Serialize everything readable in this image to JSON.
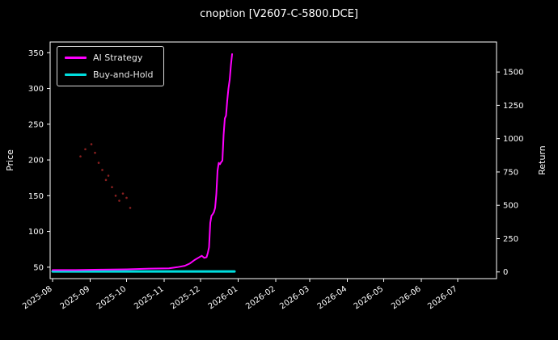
{
  "chart_data": {
    "type": "line",
    "title": "cnoption [V2607-C-5800.DCE]",
    "background": "#000000",
    "text_color": "#ffffff",
    "ylabel_left": "Price",
    "ylabel_right": "Return",
    "x_ticks": [
      {
        "date": "2025-08-01",
        "label": "2025-08"
      },
      {
        "date": "2025-09-01",
        "label": "2025-09"
      },
      {
        "date": "2025-10-01",
        "label": "2025-10"
      },
      {
        "date": "2025-11-01",
        "label": "2025-11"
      },
      {
        "date": "2025-12-01",
        "label": "2025-12"
      },
      {
        "date": "2026-01-01",
        "label": "2026-01"
      },
      {
        "date": "2026-02-01",
        "label": "2026-02"
      },
      {
        "date": "2026-03-01",
        "label": "2026-03"
      },
      {
        "date": "2026-04-01",
        "label": "2026-04"
      },
      {
        "date": "2026-05-01",
        "label": "2026-05"
      },
      {
        "date": "2026-06-01",
        "label": "2026-06"
      },
      {
        "date": "2026-07-01",
        "label": "2026-07"
      }
    ],
    "y_left_ticks": [
      50,
      100,
      150,
      200,
      250,
      300,
      350
    ],
    "y_right_ticks": [
      0,
      250,
      500,
      750,
      1000,
      1250,
      1500
    ],
    "y_left_range": [
      34,
      365
    ],
    "y_right_range": [
      -50,
      1725
    ],
    "x_range_days": [
      -2,
      366
    ],
    "grid": false,
    "legend": {
      "position": "upper-left",
      "entries": [
        {
          "label": "AI Strategy",
          "color": "#ff00ff"
        },
        {
          "label": "Buy-and-Hold",
          "color": "#00dede"
        }
      ]
    },
    "series": [
      {
        "name": "Buy-and-Hold",
        "color": "#00dede",
        "width": 3,
        "points": [
          [
            "2025-08-01",
            44
          ],
          [
            "2025-12-29",
            44
          ]
        ]
      },
      {
        "name": "AI Strategy",
        "color": "#ff00ff",
        "width": 2,
        "points": [
          [
            "2025-08-01",
            46
          ],
          [
            "2025-08-20",
            46
          ],
          [
            "2025-09-10",
            46.5
          ],
          [
            "2025-10-01",
            47
          ],
          [
            "2025-10-20",
            48
          ],
          [
            "2025-11-05",
            48.5
          ],
          [
            "2025-11-12",
            50
          ],
          [
            "2025-11-18",
            52
          ],
          [
            "2025-11-22",
            55
          ],
          [
            "2025-11-26",
            60
          ],
          [
            "2025-11-29",
            63
          ],
          [
            "2025-12-02",
            66
          ],
          [
            "2025-12-04",
            63
          ],
          [
            "2025-12-06",
            64
          ],
          [
            "2025-12-07",
            70
          ],
          [
            "2025-12-08",
            78
          ],
          [
            "2025-12-09",
            112
          ],
          [
            "2025-12-10",
            122
          ],
          [
            "2025-12-11",
            124
          ],
          [
            "2025-12-12",
            127
          ],
          [
            "2025-12-13",
            133
          ],
          [
            "2025-12-14",
            152
          ],
          [
            "2025-12-15",
            185
          ],
          [
            "2025-12-16",
            196
          ],
          [
            "2025-12-17",
            194
          ],
          [
            "2025-12-18",
            197
          ],
          [
            "2025-12-19",
            199
          ],
          [
            "2025-12-20",
            235
          ],
          [
            "2025-12-21",
            258
          ],
          [
            "2025-12-22",
            262
          ],
          [
            "2025-12-23",
            283
          ],
          [
            "2025-12-24",
            300
          ],
          [
            "2025-12-25",
            312
          ],
          [
            "2025-12-26",
            332
          ],
          [
            "2025-12-27",
            348
          ]
        ]
      }
    ],
    "scatter": {
      "name": "signal-dots",
      "color": "#8b2020",
      "radius": 1.3,
      "points": [
        [
          "2025-08-24",
          205
        ],
        [
          "2025-08-28",
          215
        ],
        [
          "2025-09-02",
          222
        ],
        [
          "2025-09-05",
          210
        ],
        [
          "2025-09-08",
          196
        ],
        [
          "2025-09-11",
          186
        ],
        [
          "2025-09-14",
          172
        ],
        [
          "2025-09-16",
          178
        ],
        [
          "2025-09-19",
          162
        ],
        [
          "2025-09-22",
          150
        ],
        [
          "2025-09-25",
          143
        ],
        [
          "2025-09-28",
          153
        ],
        [
          "2025-10-01",
          147
        ],
        [
          "2025-10-04",
          133
        ]
      ]
    }
  }
}
